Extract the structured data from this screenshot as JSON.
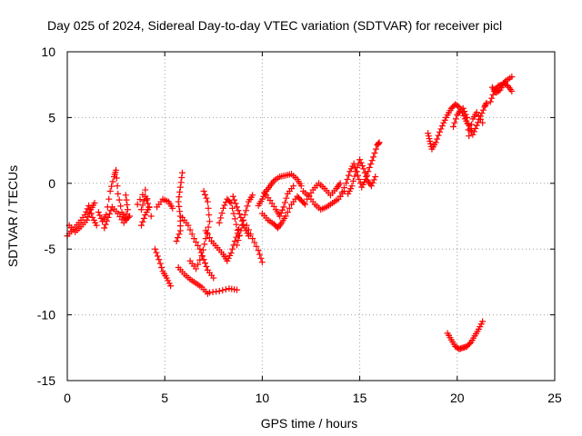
{
  "chart_data": {
    "type": "scatter",
    "title": "Day 025 of 2024, Sidereal Day-to-day VTEC variation (SDTVAR) for receiver picl",
    "xlabel": "GPS time / hours",
    "ylabel": "SDTVAR / TECUs",
    "xlim": [
      0,
      25
    ],
    "ylim": [
      -15,
      10
    ],
    "xticks": [
      0,
      5,
      10,
      15,
      20,
      25
    ],
    "yticks": [
      -15,
      -10,
      -5,
      0,
      5,
      10
    ],
    "grid": true,
    "marker": "plus",
    "color": "#ff0000",
    "tracks": [
      [
        [
          0.0,
          -4.0
        ],
        [
          0.3,
          -3.5
        ],
        [
          0.6,
          -3.0
        ],
        [
          0.9,
          -2.4
        ],
        [
          1.1,
          -1.7
        ],
        [
          1.3,
          -2.6
        ],
        [
          1.5,
          -3.2
        ]
      ],
      [
        [
          0.1,
          -3.2
        ],
        [
          0.4,
          -3.7
        ],
        [
          0.7,
          -3.3
        ],
        [
          1.0,
          -2.8
        ],
        [
          1.2,
          -2.0
        ],
        [
          1.4,
          -1.5
        ]
      ],
      [
        [
          1.6,
          -2.2
        ],
        [
          1.8,
          -2.9
        ],
        [
          2.0,
          -2.4
        ],
        [
          2.2,
          -0.6
        ],
        [
          2.4,
          0.5
        ],
        [
          2.5,
          1.0
        ],
        [
          2.6,
          -0.8
        ],
        [
          2.8,
          -2.2
        ],
        [
          3.0,
          -2.8
        ],
        [
          3.2,
          -2.5
        ]
      ],
      [
        [
          1.9,
          -3.4
        ],
        [
          2.1,
          -2.6
        ],
        [
          2.3,
          -1.8
        ],
        [
          2.6,
          -2.3
        ],
        [
          2.9,
          -3.0
        ],
        [
          3.1,
          -2.0
        ],
        [
          3.0,
          -0.9
        ]
      ],
      [
        [
          3.8,
          -3.2
        ],
        [
          4.0,
          -2.4
        ],
        [
          4.2,
          -1.8
        ],
        [
          4.0,
          -1.0
        ],
        [
          3.8,
          -2.0
        ]
      ],
      [
        [
          3.6,
          -1.6
        ],
        [
          4.0,
          -0.5
        ],
        [
          4.3,
          -2.5
        ]
      ],
      [
        [
          4.5,
          -5.0
        ],
        [
          4.7,
          -5.8
        ],
        [
          4.9,
          -6.7
        ],
        [
          5.1,
          -7.2
        ],
        [
          5.3,
          -7.8
        ]
      ],
      [
        [
          4.6,
          -1.8
        ],
        [
          4.9,
          -1.2
        ],
        [
          5.2,
          -1.4
        ],
        [
          5.4,
          -1.9
        ]
      ],
      [
        [
          5.6,
          -4.4
        ],
        [
          5.8,
          -3.6
        ],
        [
          5.8,
          -2.5
        ],
        [
          5.7,
          -1.4
        ],
        [
          5.8,
          -0.3
        ],
        [
          5.9,
          0.8
        ]
      ],
      [
        [
          5.7,
          -6.4
        ],
        [
          6.0,
          -6.9
        ],
        [
          6.3,
          -7.3
        ],
        [
          6.6,
          -7.6
        ],
        [
          6.9,
          -7.9
        ],
        [
          7.2,
          -8.4
        ]
      ],
      [
        [
          5.9,
          -2.6
        ],
        [
          6.2,
          -3.2
        ],
        [
          6.5,
          -4.2
        ],
        [
          6.8,
          -5.0
        ],
        [
          7.0,
          -5.8
        ],
        [
          7.2,
          -6.6
        ],
        [
          7.5,
          -7.2
        ]
      ],
      [
        [
          6.3,
          -5.9
        ],
        [
          6.6,
          -6.5
        ],
        [
          6.9,
          -5.5
        ],
        [
          7.1,
          -4.2
        ],
        [
          7.3,
          -2.9
        ],
        [
          7.2,
          -1.4
        ],
        [
          7.0,
          -0.6
        ]
      ],
      [
        [
          7.3,
          -8.3
        ],
        [
          7.8,
          -8.2
        ],
        [
          8.3,
          -8.0
        ],
        [
          8.7,
          -8.1
        ]
      ],
      [
        [
          7.1,
          -3.6
        ],
        [
          7.4,
          -4.4
        ],
        [
          7.7,
          -4.9
        ],
        [
          8.0,
          -5.4
        ],
        [
          8.2,
          -5.9
        ],
        [
          8.4,
          -5.3
        ],
        [
          8.6,
          -4.4
        ],
        [
          8.8,
          -3.5
        ]
      ],
      [
        [
          7.8,
          -3.0
        ],
        [
          8.0,
          -1.9
        ],
        [
          8.2,
          -1.2
        ],
        [
          8.4,
          -1.5
        ],
        [
          8.6,
          -2.7
        ],
        [
          8.8,
          -4.0
        ]
      ],
      [
        [
          8.5,
          -1.0
        ],
        [
          8.7,
          -1.8
        ],
        [
          8.9,
          -2.6
        ],
        [
          9.1,
          -3.4
        ],
        [
          9.3,
          -4.0
        ]
      ],
      [
        [
          8.7,
          -4.7
        ],
        [
          8.9,
          -3.6
        ],
        [
          9.1,
          -2.4
        ],
        [
          9.3,
          -1.4
        ],
        [
          9.5,
          -0.9
        ]
      ],
      [
        [
          9.2,
          -3.2
        ],
        [
          9.5,
          -4.2
        ],
        [
          9.8,
          -5.1
        ],
        [
          10.0,
          -6.0
        ]
      ],
      [
        [
          9.8,
          -1.7
        ],
        [
          10.0,
          -1.2
        ],
        [
          10.2,
          -0.6
        ],
        [
          10.4,
          -0.2
        ],
        [
          10.6,
          0.2
        ],
        [
          10.9,
          0.5
        ],
        [
          11.2,
          0.6
        ],
        [
          11.5,
          0.7
        ],
        [
          11.8,
          0.3
        ],
        [
          12.0,
          -0.2
        ]
      ],
      [
        [
          10.0,
          -2.3
        ],
        [
          10.3,
          -2.8
        ],
        [
          10.6,
          -3.1
        ],
        [
          10.8,
          -3.4
        ],
        [
          11.0,
          -3.0
        ],
        [
          11.2,
          -2.5
        ],
        [
          11.5,
          -1.6
        ],
        [
          11.8,
          -1.0
        ],
        [
          12.0,
          -1.3
        ],
        [
          12.2,
          -1.6
        ]
      ],
      [
        [
          10.1,
          -0.7
        ],
        [
          10.4,
          -1.3
        ],
        [
          10.7,
          -2.0
        ],
        [
          10.9,
          -2.5
        ],
        [
          11.1,
          -1.8
        ],
        [
          11.3,
          -0.8
        ],
        [
          11.6,
          -0.2
        ]
      ],
      [
        [
          12.1,
          -0.6
        ],
        [
          12.4,
          -1.0
        ],
        [
          12.7,
          -1.6
        ],
        [
          13.0,
          -2.0
        ],
        [
          13.3,
          -1.8
        ],
        [
          13.6,
          -1.5
        ],
        [
          13.9,
          -1.2
        ],
        [
          14.2,
          -0.6
        ]
      ],
      [
        [
          12.3,
          -1.2
        ],
        [
          12.6,
          -0.5
        ],
        [
          12.9,
          0.0
        ],
        [
          13.2,
          -0.4
        ],
        [
          13.5,
          -0.9
        ],
        [
          13.8,
          -0.4
        ],
        [
          14.0,
          0.0
        ]
      ],
      [
        [
          14.0,
          -1.0
        ],
        [
          14.3,
          0.0
        ],
        [
          14.5,
          0.9
        ],
        [
          14.7,
          1.5
        ],
        [
          14.9,
          0.6
        ],
        [
          15.1,
          -0.3
        ],
        [
          15.3,
          0.3
        ],
        [
          15.5,
          1.2
        ],
        [
          15.7,
          2.0
        ],
        [
          15.9,
          2.9
        ],
        [
          16.0,
          3.1
        ]
      ],
      [
        [
          14.4,
          -0.8
        ],
        [
          14.6,
          -0.2
        ],
        [
          14.8,
          0.9
        ],
        [
          15.0,
          1.8
        ],
        [
          15.2,
          1.1
        ],
        [
          15.4,
          0.2
        ],
        [
          15.6,
          -0.2
        ],
        [
          15.8,
          0.5
        ]
      ],
      [
        [
          18.5,
          3.8
        ],
        [
          18.6,
          3.2
        ],
        [
          18.7,
          2.6
        ],
        [
          18.9,
          3.1
        ],
        [
          19.1,
          3.9
        ],
        [
          19.3,
          4.6
        ],
        [
          19.5,
          5.2
        ],
        [
          19.7,
          5.7
        ],
        [
          19.9,
          6.0
        ],
        [
          20.1,
          5.8
        ]
      ],
      [
        [
          19.8,
          4.3
        ],
        [
          20.0,
          5.2
        ],
        [
          20.2,
          5.6
        ],
        [
          20.4,
          4.9
        ],
        [
          20.6,
          4.4
        ],
        [
          20.8,
          3.7
        ],
        [
          21.0,
          4.4
        ],
        [
          21.2,
          5.1
        ],
        [
          21.4,
          5.8
        ],
        [
          21.5,
          6.1
        ]
      ],
      [
        [
          20.3,
          5.7
        ],
        [
          20.5,
          5.0
        ],
        [
          20.6,
          3.6
        ],
        [
          20.8,
          4.9
        ],
        [
          21.0,
          5.4
        ],
        [
          21.3,
          4.6
        ]
      ],
      [
        [
          21.7,
          6.2
        ],
        [
          21.9,
          7.0
        ],
        [
          22.1,
          7.4
        ],
        [
          22.3,
          7.5
        ],
        [
          22.5,
          7.8
        ],
        [
          22.8,
          8.1
        ]
      ],
      [
        [
          21.8,
          7.3
        ],
        [
          22.0,
          6.9
        ],
        [
          22.2,
          7.1
        ],
        [
          22.4,
          7.6
        ],
        [
          22.6,
          7.4
        ],
        [
          22.8,
          7.0
        ]
      ],
      [
        [
          19.5,
          -11.4
        ],
        [
          19.7,
          -11.9
        ],
        [
          19.9,
          -12.4
        ],
        [
          20.1,
          -12.6
        ],
        [
          20.3,
          -12.5
        ],
        [
          20.5,
          -12.4
        ],
        [
          20.7,
          -12.1
        ],
        [
          20.9,
          -11.6
        ],
        [
          21.1,
          -11.1
        ],
        [
          21.3,
          -10.5
        ]
      ]
    ]
  }
}
